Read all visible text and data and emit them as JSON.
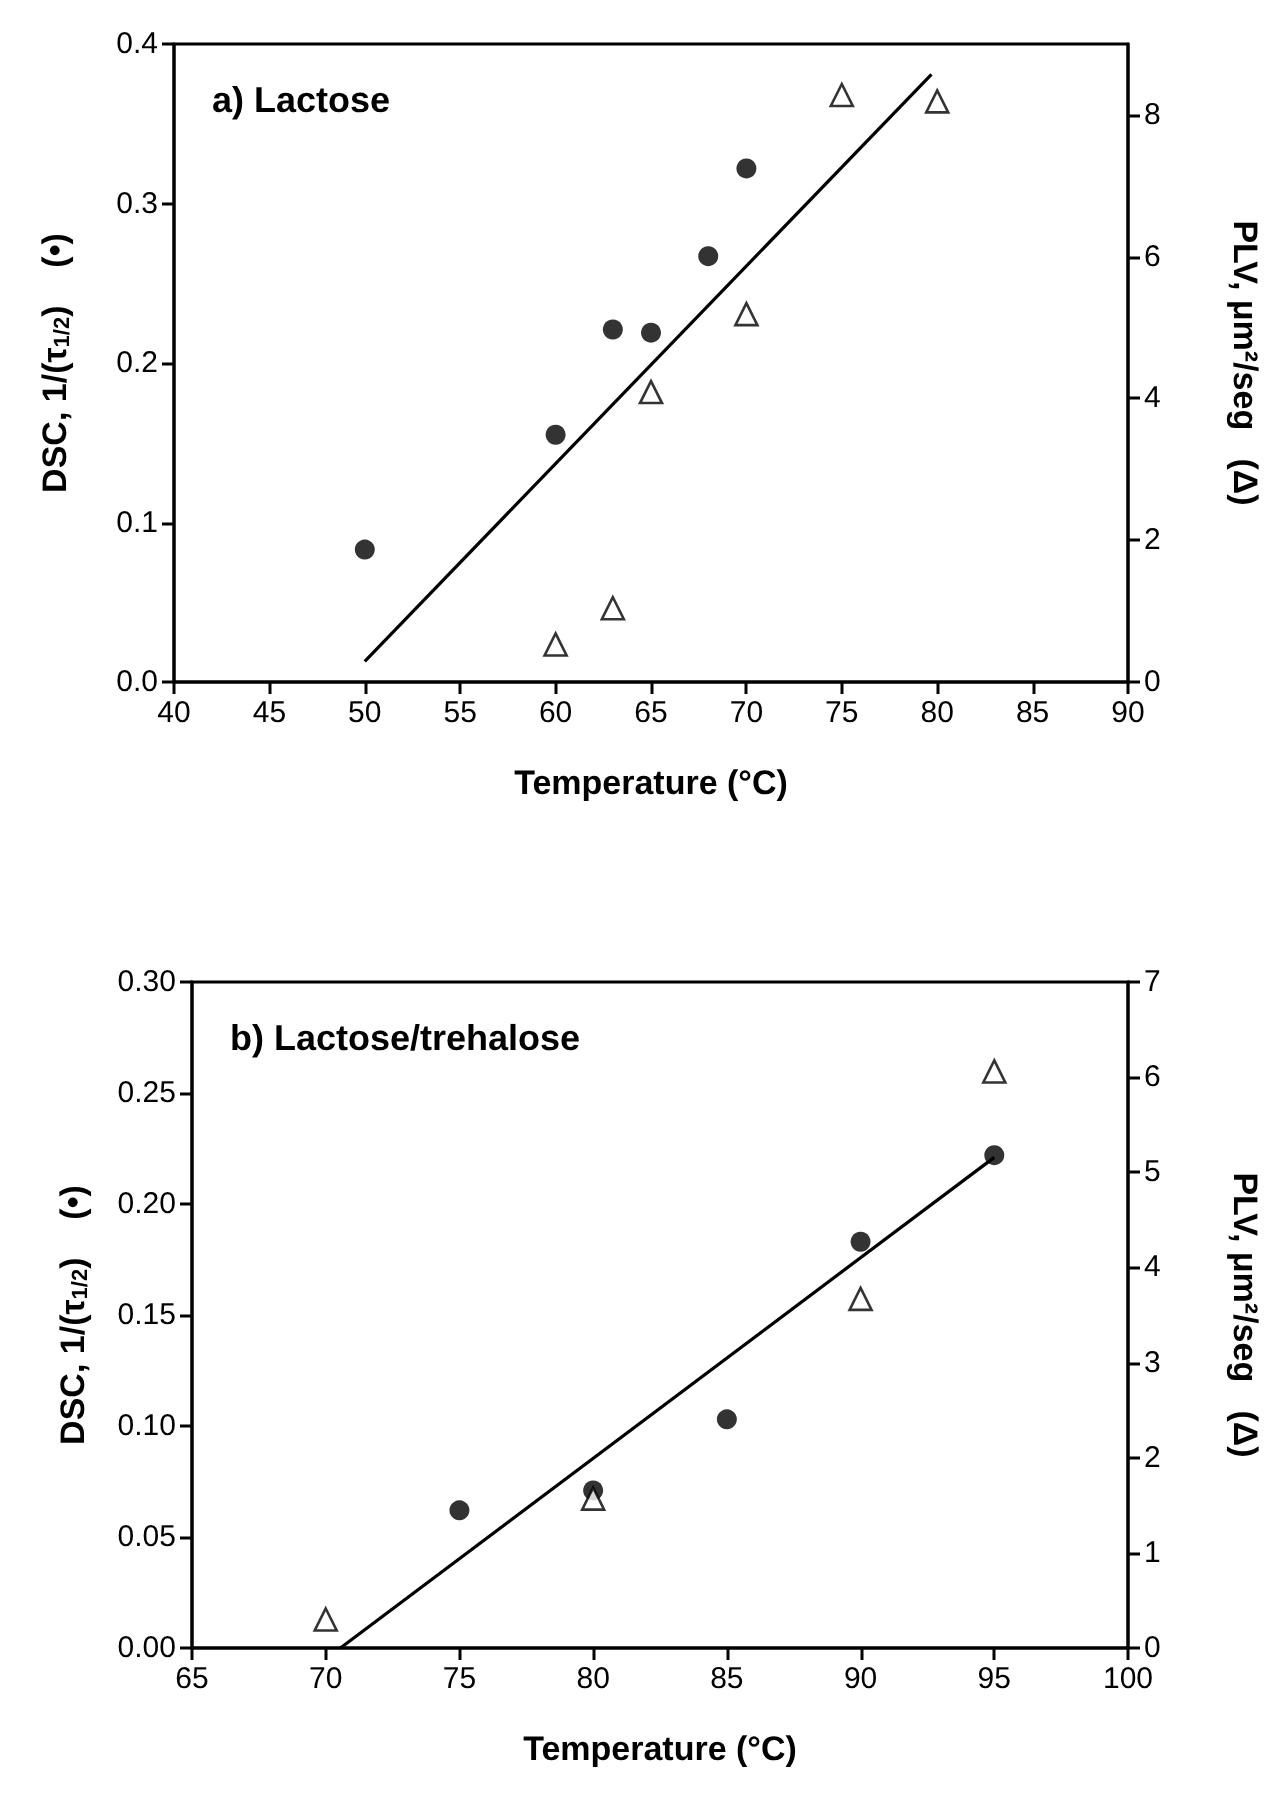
{
  "chart_data": [
    {
      "type": "scatter",
      "title": "a) Lactose",
      "xlabel": "Temperature (°C)",
      "ylabel": "DSC, 1/(τ$_{1/2}$)    (•)",
      "y2label": "PLV, μm²/seg   (Δ)",
      "xlim": [
        40,
        90
      ],
      "xticks": [
        40,
        45,
        50,
        55,
        60,
        65,
        70,
        75,
        80,
        85,
        90
      ],
      "ylim": [
        0,
        0.4
      ],
      "yticks": [
        {
          "value": 0,
          "label": "0.0"
        },
        0.1,
        0.2,
        0.3,
        0.4
      ],
      "y2lim": [
        0,
        9
      ],
      "y2ticks": [
        0,
        2,
        4,
        6,
        8
      ],
      "grid": false,
      "series": [
        {
          "color": "#000000",
          "marker": "circle",
          "x": [
            50,
            60,
            63,
            65,
            68,
            70
          ],
          "values": [
            0.083,
            0.155,
            0.221,
            0.219,
            0.267,
            0.322
          ]
        },
        {
          "color": "#000000",
          "marker": "triangle",
          "axis": "y2",
          "x": [
            60,
            63,
            65,
            70,
            75,
            80
          ],
          "values": [
            0.53,
            1.04,
            4.09,
            5.19,
            8.28,
            8.19
          ]
        },
        {
          "type": "line",
          "color": "#000000",
          "marker": "none",
          "x": [
            50,
            79.7
          ],
          "values": [
            0.013,
            0.381
          ]
        }
      ]
    },
    {
      "type": "scatter",
      "title": "b) Lactose/trehalose",
      "xlabel": "Temperature (°C)",
      "ylabel": "DSC, 1/(τ$_{1/2}$)    (•)",
      "y2label": "PLV, μm²/seg   (Δ)",
      "xlim": [
        65,
        100
      ],
      "xticks": [
        65,
        70,
        75,
        80,
        85,
        90,
        95,
        100
      ],
      "ylim": [
        0,
        0.3
      ],
      "yticks": [
        {
          "value": 0,
          "label": "0.00"
        },
        {
          "value": 0.05,
          "label": "0.05"
        },
        {
          "value": 0.1,
          "label": "0.10"
        },
        {
          "value": 0.15,
          "label": "0.15"
        },
        {
          "value": 0.2,
          "label": "0.20"
        },
        {
          "value": 0.25,
          "label": "0.25"
        },
        {
          "value": 0.3,
          "label": "0.30"
        }
      ],
      "y2lim": [
        0,
        7
      ],
      "y2ticks": [
        0,
        1,
        2,
        3,
        4,
        5,
        6,
        7
      ],
      "grid": false,
      "series": [
        {
          "color": "#000000",
          "marker": "circle",
          "x": [
            75,
            80,
            85,
            90,
            95
          ],
          "values": [
            0.062,
            0.071,
            0.103,
            0.183,
            0.222
          ]
        },
        {
          "color": "#000000",
          "marker": "triangle",
          "axis": "y2",
          "x": [
            70,
            80,
            90,
            95
          ],
          "values": [
            0.3,
            1.57,
            3.67,
            6.06
          ]
        },
        {
          "type": "line",
          "color": "#000000",
          "marker": "none",
          "x": [
            70.55,
            95
          ],
          "values": [
            0,
            0.221
          ]
        }
      ]
    }
  ]
}
